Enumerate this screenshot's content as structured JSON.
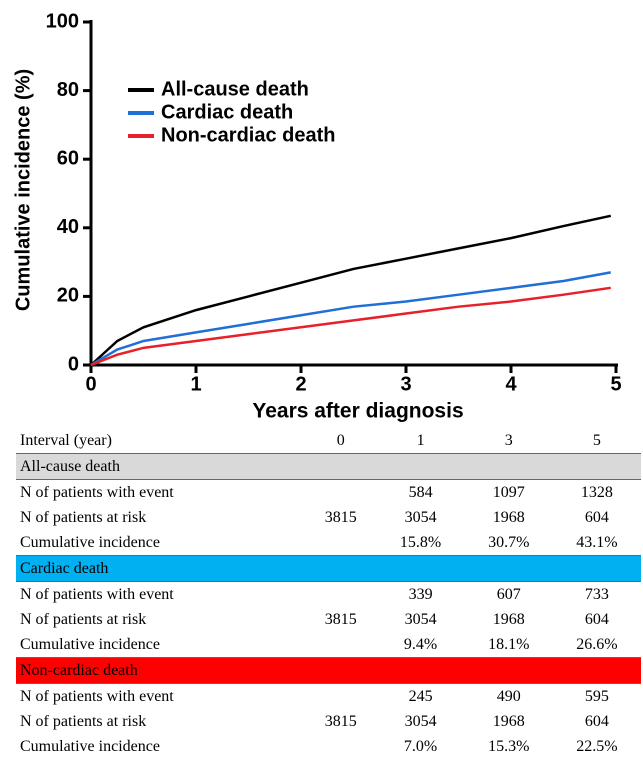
{
  "chart_data": {
    "type": "line",
    "xlabel": "Years after diagnosis",
    "ylabel": "Cumulative incidence (%)",
    "x": [
      0,
      0.25,
      0.5,
      1,
      1.5,
      2,
      2.5,
      3,
      3.5,
      4,
      4.5,
      4.95
    ],
    "series": [
      {
        "name": "All-cause death",
        "color": "#000000",
        "values": [
          0,
          7,
          11,
          16,
          20,
          24,
          28,
          31,
          34,
          37,
          40.5,
          43.5
        ]
      },
      {
        "name": "Cardiac death",
        "color": "#1f6fd6",
        "values": [
          0,
          4.5,
          7,
          9.5,
          12,
          14.5,
          17,
          18.5,
          20.5,
          22.5,
          24.5,
          27
        ]
      },
      {
        "name": "Non-cardiac death",
        "color": "#e8202a",
        "values": [
          0,
          3,
          5,
          7,
          9,
          11,
          13,
          15,
          17,
          18.5,
          20.5,
          22.5
        ]
      }
    ],
    "xlim": [
      0,
      5
    ],
    "xticks": [
      0,
      1,
      2,
      3,
      4,
      5
    ],
    "ylim": [
      0,
      100
    ],
    "yticks": [
      0,
      20,
      40,
      60,
      80,
      100
    ],
    "legend": "upper left"
  },
  "table": {
    "header": [
      "Interval (year)",
      "0",
      "1",
      "3",
      "5"
    ],
    "sections": [
      {
        "title": "All-cause death",
        "color": "#d9d9d9",
        "rows": [
          [
            "N of patients with event",
            null,
            "584",
            "1097",
            "1328"
          ],
          [
            "N of patients at risk",
            "3815",
            "3054",
            "1968",
            "604"
          ],
          [
            "Cumulative incidence",
            null,
            "15.8%",
            "30.7%",
            "43.1%"
          ]
        ]
      },
      {
        "title": "Cardiac death",
        "color": "#00b0f0",
        "rows": [
          [
            "N of patients with event",
            null,
            "339",
            "607",
            "733"
          ],
          [
            "N of patients at risk",
            "3815",
            "3054",
            "1968",
            "604"
          ],
          [
            "Cumulative incidence",
            null,
            "9.4%",
            "18.1%",
            "26.6%"
          ]
        ]
      },
      {
        "title": "Non-cardiac death",
        "color": "#ff0000",
        "rows": [
          [
            "N of patients with event",
            null,
            "245",
            "490",
            "595"
          ],
          [
            "N of patients at risk",
            "3815",
            "3054",
            "1968",
            "604"
          ],
          [
            "Cumulative incidence",
            null,
            "7.0%",
            "15.3%",
            "22.5%"
          ]
        ]
      }
    ]
  }
}
